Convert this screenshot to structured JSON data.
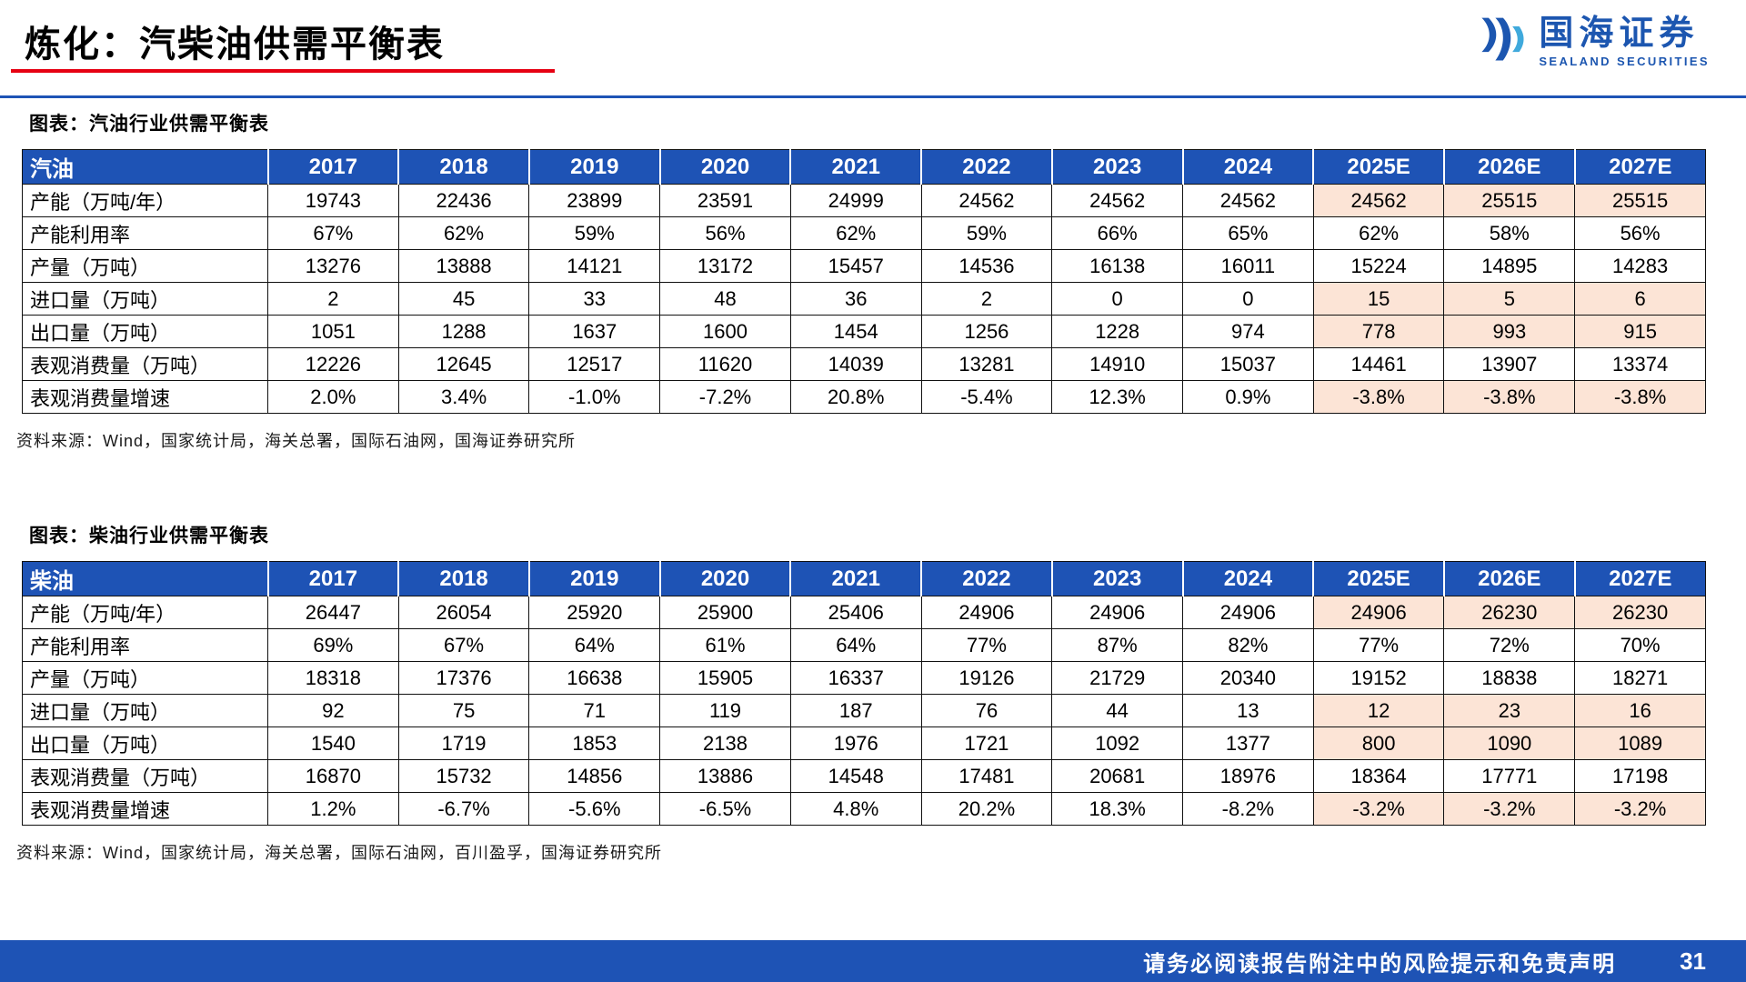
{
  "page": {
    "title": "炼化：汽柴油供需平衡表",
    "logo": {
      "cn": "国海证券",
      "en": "SEALAND SECURITIES"
    },
    "footer": {
      "disclaimer": "请务必阅读报告附注中的风险提示和免责声明",
      "page_number": "31"
    }
  },
  "colors": {
    "header_blue": "#1E53B5",
    "footer_blue": "#1E53B5",
    "highlight_peach": "#FCE4D6",
    "underline_red": "#E60012",
    "logo_blue": "#1C56B0",
    "logo_accent": "#3FA9DC",
    "border_dark": "#111111"
  },
  "tables": [
    {
      "caption": "图表：汽油行业供需平衡表",
      "columns": [
        "汽油",
        "2017",
        "2018",
        "2019",
        "2020",
        "2021",
        "2022",
        "2023",
        "2024",
        "2025E",
        "2026E",
        "2027E"
      ],
      "rows": [
        {
          "label": "产能（万吨/年）",
          "values": [
            "19743",
            "22436",
            "23899",
            "23591",
            "24999",
            "24562",
            "24562",
            "24562",
            "24562",
            "25515",
            "25515"
          ],
          "highlight_e": true
        },
        {
          "label": "产能利用率",
          "values": [
            "67%",
            "62%",
            "59%",
            "56%",
            "62%",
            "59%",
            "66%",
            "65%",
            "62%",
            "58%",
            "56%"
          ],
          "highlight_e": false
        },
        {
          "label": "产量（万吨）",
          "values": [
            "13276",
            "13888",
            "14121",
            "13172",
            "15457",
            "14536",
            "16138",
            "16011",
            "15224",
            "14895",
            "14283"
          ],
          "highlight_e": false
        },
        {
          "label": "进口量（万吨）",
          "values": [
            "2",
            "45",
            "33",
            "48",
            "36",
            "2",
            "0",
            "0",
            "15",
            "5",
            "6"
          ],
          "highlight_e": true
        },
        {
          "label": "出口量（万吨）",
          "values": [
            "1051",
            "1288",
            "1637",
            "1600",
            "1454",
            "1256",
            "1228",
            "974",
            "778",
            "993",
            "915"
          ],
          "highlight_e": true
        },
        {
          "label": "表观消费量（万吨）",
          "values": [
            "12226",
            "12645",
            "12517",
            "11620",
            "14039",
            "13281",
            "14910",
            "15037",
            "14461",
            "13907",
            "13374"
          ],
          "highlight_e": false
        },
        {
          "label": "表观消费量增速",
          "values": [
            "2.0%",
            "3.4%",
            "-1.0%",
            "-7.2%",
            "20.8%",
            "-5.4%",
            "12.3%",
            "0.9%",
            "-3.8%",
            "-3.8%",
            "-3.8%"
          ],
          "highlight_e": true
        }
      ],
      "source": "资料来源：Wind，国家统计局，海关总署，国际石油网，国海证券研究所"
    },
    {
      "caption": "图表：柴油行业供需平衡表",
      "columns": [
        "柴油",
        "2017",
        "2018",
        "2019",
        "2020",
        "2021",
        "2022",
        "2023",
        "2024",
        "2025E",
        "2026E",
        "2027E"
      ],
      "rows": [
        {
          "label": "产能（万吨/年）",
          "values": [
            "26447",
            "26054",
            "25920",
            "25900",
            "25406",
            "24906",
            "24906",
            "24906",
            "24906",
            "26230",
            "26230"
          ],
          "highlight_e": true
        },
        {
          "label": "产能利用率",
          "values": [
            "69%",
            "67%",
            "64%",
            "61%",
            "64%",
            "77%",
            "87%",
            "82%",
            "77%",
            "72%",
            "70%"
          ],
          "highlight_e": false
        },
        {
          "label": "产量（万吨）",
          "values": [
            "18318",
            "17376",
            "16638",
            "15905",
            "16337",
            "19126",
            "21729",
            "20340",
            "19152",
            "18838",
            "18271"
          ],
          "highlight_e": false
        },
        {
          "label": "进口量（万吨）",
          "values": [
            "92",
            "75",
            "71",
            "119",
            "187",
            "76",
            "44",
            "13",
            "12",
            "23",
            "16"
          ],
          "highlight_e": true
        },
        {
          "label": "出口量（万吨）",
          "values": [
            "1540",
            "1719",
            "1853",
            "2138",
            "1976",
            "1721",
            "1092",
            "1377",
            "800",
            "1090",
            "1089"
          ],
          "highlight_e": true
        },
        {
          "label": "表观消费量（万吨）",
          "values": [
            "16870",
            "15732",
            "14856",
            "13886",
            "14548",
            "17481",
            "20681",
            "18976",
            "18364",
            "17771",
            "17198"
          ],
          "highlight_e": false
        },
        {
          "label": "表观消费量增速",
          "values": [
            "1.2%",
            "-6.7%",
            "-5.6%",
            "-6.5%",
            "4.8%",
            "20.2%",
            "18.3%",
            "-8.2%",
            "-3.2%",
            "-3.2%",
            "-3.2%"
          ],
          "highlight_e": true
        }
      ],
      "source": "资料来源：Wind，国家统计局，海关总署，国际石油网，百川盈孚，国海证券研究所"
    }
  ]
}
